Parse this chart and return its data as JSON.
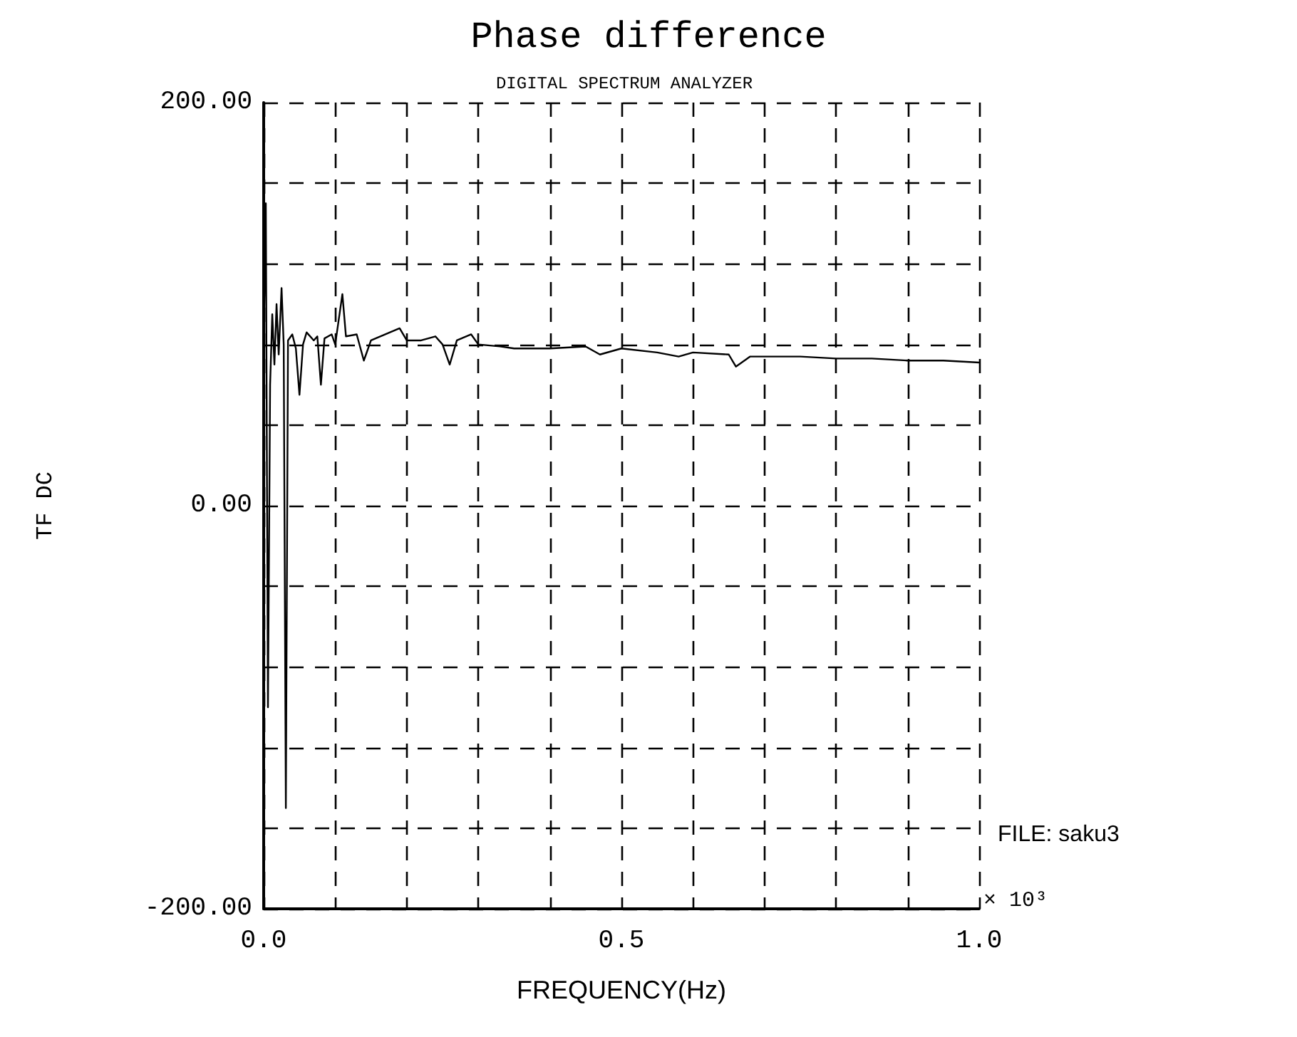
{
  "chart_data": {
    "type": "line",
    "title": "Phase difference",
    "subtitle": "DIGITAL SPECTRUM ANALYZER",
    "xlabel": "FREQUENCY(Hz)",
    "ylabel": "TF DC",
    "annotations": [
      "× 10³",
      "FILE: saku3"
    ],
    "x": [
      0.0,
      0.003,
      0.006,
      0.009,
      0.012,
      0.015,
      0.018,
      0.021,
      0.025,
      0.028,
      0.031,
      0.034,
      0.04,
      0.045,
      0.05,
      0.055,
      0.06,
      0.07,
      0.075,
      0.08,
      0.085,
      0.095,
      0.1,
      0.11,
      0.115,
      0.13,
      0.14,
      0.15,
      0.17,
      0.19,
      0.2,
      0.22,
      0.24,
      0.25,
      0.26,
      0.27,
      0.29,
      0.3,
      0.33,
      0.35,
      0.4,
      0.45,
      0.47,
      0.5,
      0.55,
      0.58,
      0.6,
      0.65,
      0.66,
      0.68,
      0.75,
      0.8,
      0.85,
      0.9,
      0.95,
      1.0
    ],
    "series": [
      {
        "color": "#000000",
        "values": [
          80,
          150,
          -100,
          60,
          95,
          70,
          100,
          75,
          108,
          80,
          -150,
          82,
          85,
          78,
          55,
          80,
          86,
          82,
          84,
          60,
          83,
          85,
          80,
          105,
          84,
          85,
          72,
          82,
          85,
          88,
          82,
          82,
          84,
          80,
          70,
          82,
          85,
          80,
          79,
          78,
          78,
          79,
          75,
          78,
          76,
          74,
          76,
          75,
          69,
          74,
          74,
          73,
          73,
          72,
          72,
          71
        ]
      }
    ],
    "xlim": [
      0,
      1
    ],
    "xticks": [
      {
        "value": 0,
        "label": "0.0"
      },
      {
        "value": 0.1,
        "label": null
      },
      {
        "value": 0.2,
        "label": null
      },
      {
        "value": 0.3,
        "label": null
      },
      {
        "value": 0.4,
        "label": null
      },
      {
        "value": 0.5,
        "label": "0.5"
      },
      {
        "value": 0.6,
        "label": null
      },
      {
        "value": 0.7,
        "label": null
      },
      {
        "value": 0.8,
        "label": null
      },
      {
        "value": 0.9,
        "label": null
      },
      {
        "value": 1,
        "label": "1.0"
      }
    ],
    "ylim": [
      -200,
      200
    ],
    "yticks": [
      {
        "value": -200,
        "label": "-200.00"
      },
      {
        "value": -160,
        "label": null
      },
      {
        "value": -120,
        "label": null
      },
      {
        "value": -80,
        "label": null
      },
      {
        "value": -40,
        "label": null
      },
      {
        "value": 0,
        "label": "0.00"
      },
      {
        "value": 40,
        "label": null
      },
      {
        "value": 80,
        "label": null
      },
      {
        "value": 120,
        "label": null
      },
      {
        "value": 160,
        "label": null
      },
      {
        "value": 200,
        "label": "200.00"
      }
    ],
    "grid": true,
    "marker": "none",
    "line_style": "solid"
  }
}
